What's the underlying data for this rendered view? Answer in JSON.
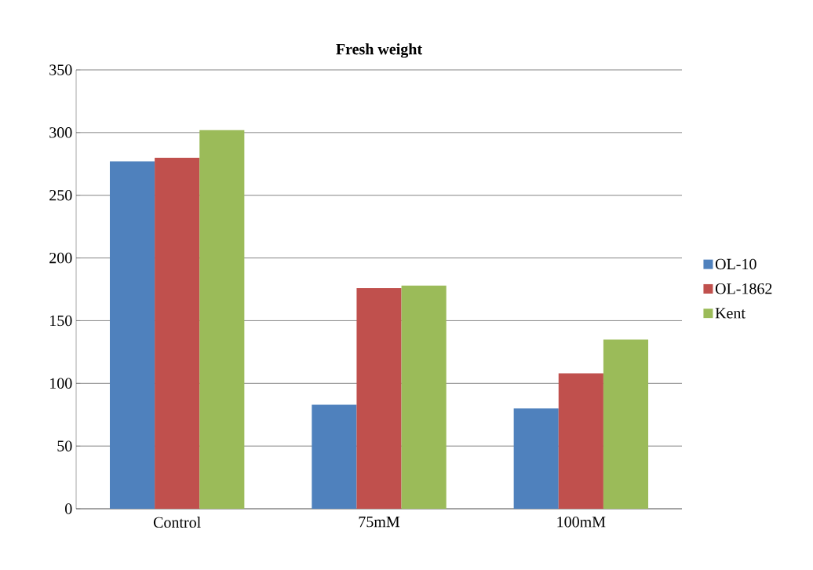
{
  "chart_data": {
    "type": "bar",
    "title": "Fresh weight",
    "categories": [
      "Control",
      "75mM",
      "100mM"
    ],
    "series": [
      {
        "name": "OL-10",
        "color": "#4f81bd",
        "values": [
          277,
          83,
          80
        ]
      },
      {
        "name": "OL-1862",
        "color": "#c0504d",
        "values": [
          280,
          176,
          108
        ]
      },
      {
        "name": "Kent",
        "color": "#9bbb59",
        "values": [
          302,
          178,
          135
        ]
      }
    ],
    "ylim": [
      0,
      350
    ],
    "yticks": [
      0,
      50,
      100,
      150,
      200,
      250,
      300,
      350
    ],
    "grid": "y",
    "legend": "right"
  }
}
